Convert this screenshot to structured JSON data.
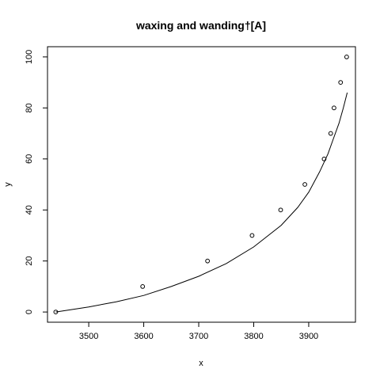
{
  "chart_data": {
    "type": "scatter",
    "title": "waxing and wanding†[A]",
    "xlabel": "x",
    "ylabel": "y",
    "xlim": [
      3425,
      3985
    ],
    "ylim": [
      -4,
      104
    ],
    "x_ticks": [
      3500,
      3600,
      3700,
      3800,
      3900
    ],
    "y_ticks": [
      0,
      20,
      40,
      60,
      80,
      100
    ],
    "grid": false,
    "legend": "none",
    "series": [
      {
        "kind": "points",
        "x": [
          3440,
          3598,
          3716,
          3797,
          3849,
          3893,
          3928,
          3940,
          3946,
          3958,
          3969
        ],
        "y": [
          0,
          10,
          20,
          30,
          40,
          50,
          60,
          70,
          80,
          90,
          100
        ]
      },
      {
        "kind": "line",
        "x": [
          3440,
          3500,
          3550,
          3600,
          3650,
          3700,
          3750,
          3800,
          3850,
          3880,
          3900,
          3920,
          3935,
          3945,
          3955,
          3963,
          3970
        ],
        "y": [
          0,
          2,
          4,
          6.5,
          10,
          14,
          19,
          25.5,
          34,
          41,
          47,
          55,
          62,
          68,
          74,
          80,
          86
        ]
      }
    ]
  }
}
